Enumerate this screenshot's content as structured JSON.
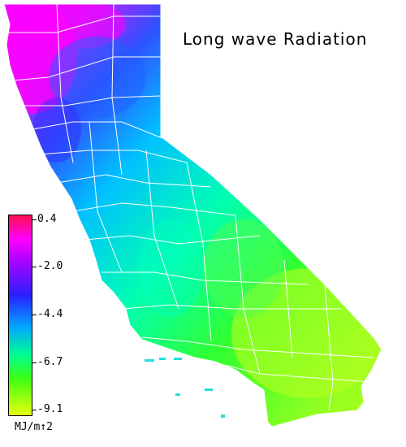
{
  "title": "Long wave Radiation",
  "legend": {
    "ticks": [
      "0.4",
      "-2.0",
      "-4.4",
      "-6.7",
      "-9.1"
    ],
    "unit": "MJ/m↑2",
    "colors": [
      "#ff1050",
      "#ff00ff",
      "#b000ff",
      "#2a20ff",
      "#00a8ff",
      "#00ff90",
      "#40ff10",
      "#e8ff10"
    ]
  },
  "map": {
    "region": "California",
    "county_border_color": "#ffffff"
  }
}
